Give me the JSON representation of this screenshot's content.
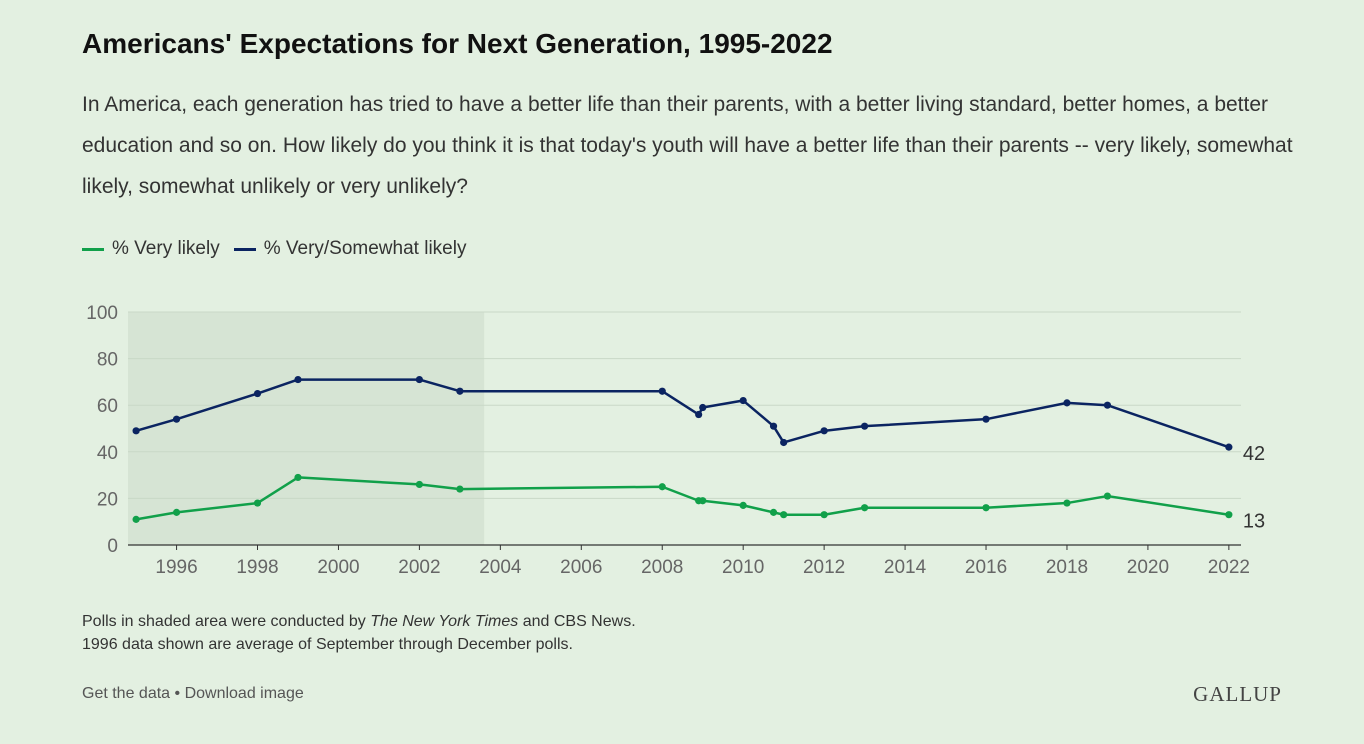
{
  "header": {
    "title": "Americans' Expectations for Next Generation, 1995-2022",
    "subtitle": "In America, each generation has tried to have a better life than their parents, with a better living standard, better homes, a better education and so on. How likely do you think it is that today's youth will have a better life than their parents -- very likely, somewhat likely, somewhat unlikely or very unlikely?"
  },
  "notes": {
    "line1_pre": "Polls in shaded area were conducted by ",
    "line1_em": "The New York Times",
    "line1_post": " and CBS News.",
    "line2": "1996 data shown are average of September through December polls."
  },
  "footer": {
    "get_data": "Get the data",
    "separator": " • ",
    "download": "Download image",
    "logo": "GALLUP"
  },
  "colors": {
    "very_likely": "#11a04a",
    "very_somewhat_likely": "#0b2461",
    "shade": "#d6e4d4",
    "grid": "#c9d8c7"
  },
  "chart_data": {
    "type": "line",
    "title": "",
    "xlabel": "",
    "ylabel": "",
    "xlim": [
      1994.8,
      2022.3
    ],
    "ylim": [
      0,
      100
    ],
    "yticks": [
      0,
      20,
      40,
      60,
      80,
      100
    ],
    "xticks": [
      1996,
      1998,
      2000,
      2002,
      2004,
      2006,
      2008,
      2010,
      2012,
      2014,
      2016,
      2018,
      2020,
      2022
    ],
    "grid": true,
    "legend_position": "top-left",
    "shaded_range": [
      1994.8,
      2003.6
    ],
    "series": [
      {
        "name": "% Very likely",
        "color": "#11a04a",
        "end_label": "13",
        "points": [
          [
            1995.0,
            11
          ],
          [
            1996.0,
            14
          ],
          [
            1998.0,
            18
          ],
          [
            1999.0,
            29
          ],
          [
            2002.0,
            26
          ],
          [
            2003.0,
            24
          ],
          [
            2008.0,
            25
          ],
          [
            2008.9,
            19
          ],
          [
            2009.0,
            19
          ],
          [
            2010.0,
            17
          ],
          [
            2010.75,
            14
          ],
          [
            2011.0,
            13
          ],
          [
            2012.0,
            13
          ],
          [
            2013.0,
            16
          ],
          [
            2016.0,
            16
          ],
          [
            2018.0,
            18
          ],
          [
            2019.0,
            21
          ],
          [
            2022.0,
            13
          ]
        ]
      },
      {
        "name": "% Very/Somewhat likely",
        "color": "#0b2461",
        "end_label": "42",
        "points": [
          [
            1995.0,
            49
          ],
          [
            1996.0,
            54
          ],
          [
            1998.0,
            65
          ],
          [
            1999.0,
            71
          ],
          [
            2002.0,
            71
          ],
          [
            2003.0,
            66
          ],
          [
            2008.0,
            66
          ],
          [
            2008.9,
            56
          ],
          [
            2009.0,
            59
          ],
          [
            2010.0,
            62
          ],
          [
            2010.75,
            51
          ],
          [
            2011.0,
            44
          ],
          [
            2012.0,
            49
          ],
          [
            2013.0,
            51
          ],
          [
            2016.0,
            54
          ],
          [
            2018.0,
            61
          ],
          [
            2019.0,
            60
          ],
          [
            2022.0,
            42
          ]
        ]
      }
    ]
  }
}
